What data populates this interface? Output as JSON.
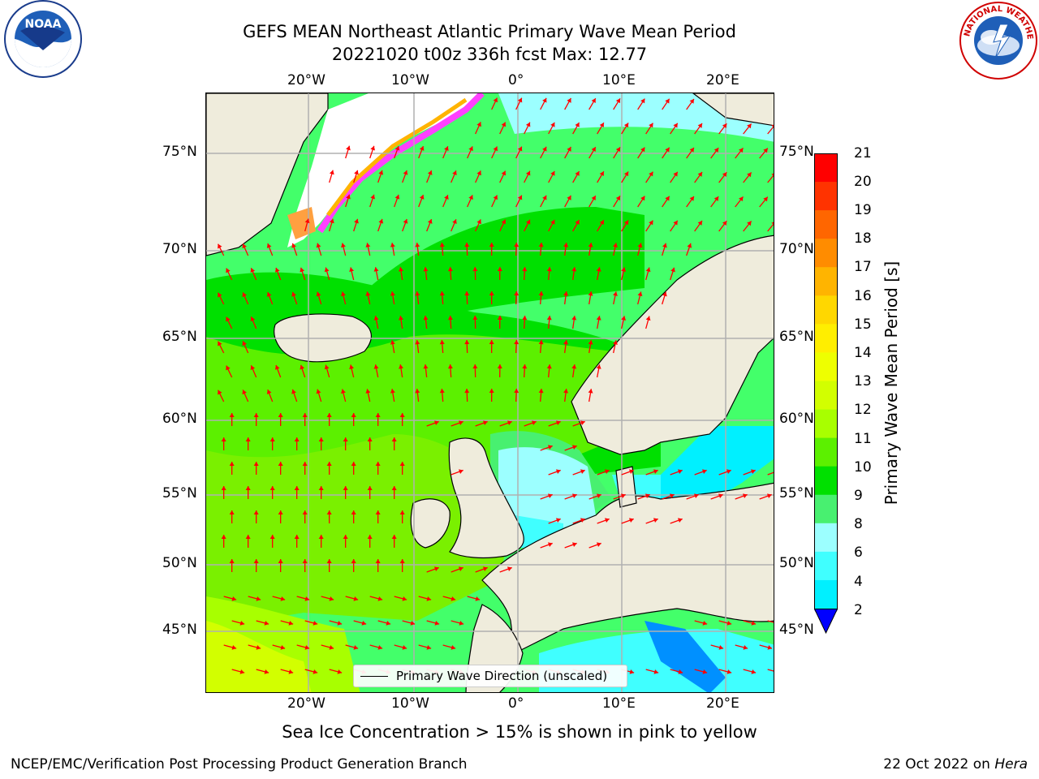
{
  "header": {
    "title_line1": "GEFS MEAN Northeast Atlantic Primary Wave Mean Period",
    "title_line2": "20221020 t00z 336h fcst   Max: 12.77"
  },
  "map": {
    "lon_labels_top": [
      "20°W",
      "10°W",
      "0°",
      "10°E",
      "20°E"
    ],
    "lon_labels_bottom": [
      "20°W",
      "10°W",
      "0°",
      "10°E",
      "20°E"
    ],
    "lat_labels_left": [
      "75°N",
      "70°N",
      "65°N",
      "60°N",
      "55°N",
      "50°N",
      "45°N"
    ],
    "lat_labels_right": [
      "75°N",
      "70°N",
      "65°N",
      "60°N",
      "55°N",
      "50°N",
      "45°N"
    ],
    "arrow_color": "#ff0000",
    "land_color": "#efecdc",
    "legend_label": "Primary Wave Direction (unscaled)"
  },
  "colorbar": {
    "label": "Primary Wave Mean Period [s]",
    "ticks": [
      "21",
      "20",
      "19",
      "18",
      "17",
      "16",
      "15",
      "14",
      "13",
      "12",
      "11",
      "10",
      "9",
      "8",
      "6",
      "4",
      "2"
    ],
    "colors": [
      "#ff0000",
      "#ff3300",
      "#ff6600",
      "#ff8c00",
      "#ffb400",
      "#ffd700",
      "#ffee00",
      "#eeff00",
      "#d2ff00",
      "#a8ff00",
      "#5cf000",
      "#00e000",
      "#48f070",
      "#9cffff",
      "#40ffff",
      "#00f0ff",
      "#0090ff",
      "#0060ff"
    ]
  },
  "caption": "Sea Ice Concentration > 15% is shown in pink to yellow",
  "footer": {
    "left": "NCEP/EMC/Verification Post Processing Product Generation Branch",
    "right_prefix": "22 Oct 2022 on ",
    "right_machine": "Hera"
  },
  "logos": {
    "left": "NOAA",
    "left_ring_text": "NATIONAL OCEANIC AND ATMOSPHERIC ADMINISTRATION · U.S. DEPARTMENT OF COMMERCE",
    "right_ring_text": "NATIONAL WEATHER SERVICE"
  }
}
